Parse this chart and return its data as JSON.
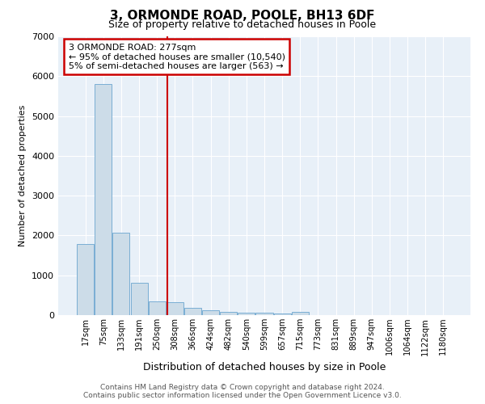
{
  "title": "3, ORMONDE ROAD, POOLE, BH13 6DF",
  "subtitle": "Size of property relative to detached houses in Poole",
  "xlabel": "Distribution of detached houses by size in Poole",
  "ylabel": "Number of detached properties",
  "bar_labels": [
    "17sqm",
    "75sqm",
    "133sqm",
    "191sqm",
    "250sqm",
    "308sqm",
    "366sqm",
    "424sqm",
    "482sqm",
    "540sqm",
    "599sqm",
    "657sqm",
    "715sqm",
    "773sqm",
    "831sqm",
    "889sqm",
    "947sqm",
    "1006sqm",
    "1064sqm",
    "1122sqm",
    "1180sqm"
  ],
  "bar_values": [
    1780,
    5800,
    2060,
    820,
    350,
    320,
    185,
    115,
    80,
    65,
    55,
    50,
    80,
    0,
    0,
    0,
    0,
    0,
    0,
    0,
    0
  ],
  "bar_color": "#ccdce8",
  "bar_edgecolor": "#7aaed4",
  "vline_x": 4.58,
  "vline_color": "#cc0000",
  "ylim": [
    0,
    7000
  ],
  "annotation_text": "3 ORMONDE ROAD: 277sqm\n← 95% of detached houses are smaller (10,540)\n5% of semi-detached houses are larger (563) →",
  "annotation_box_facecolor": "#ffffff",
  "annotation_box_edgecolor": "#cc0000",
  "footer_line1": "Contains HM Land Registry data © Crown copyright and database right 2024.",
  "footer_line2": "Contains public sector information licensed under the Open Government Licence v3.0.",
  "plot_background": "#e8f0f8"
}
